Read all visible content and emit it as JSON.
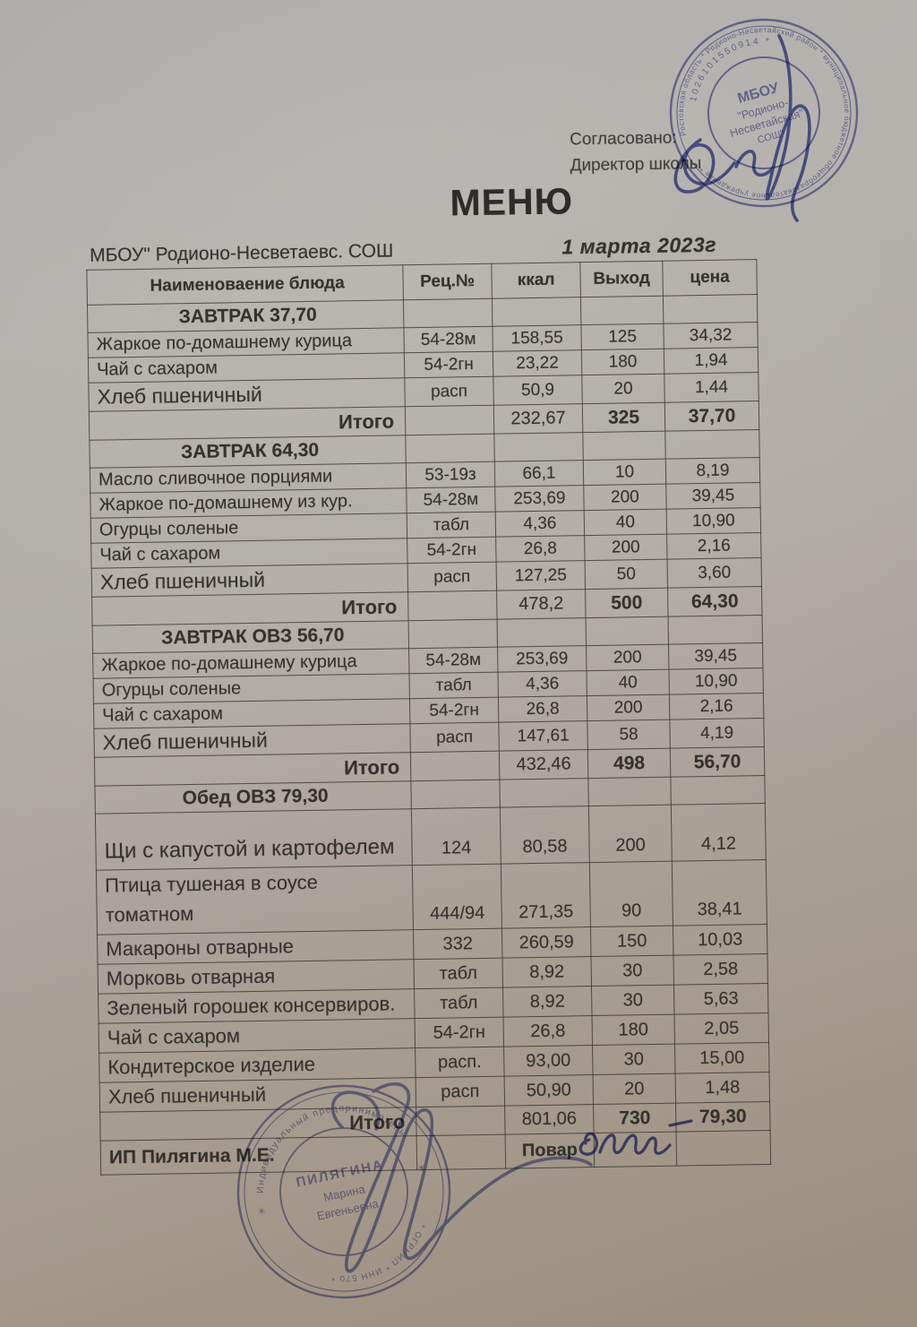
{
  "colors": {
    "text_ink": "#34312e",
    "stamp_ink": "#5a5fae",
    "signature_ink": "#4753a6",
    "paper_top": "#b3b0ac",
    "paper_bottom": "#9c8d7d"
  },
  "approval": {
    "line1": "Согласовано:",
    "line2": "Директор школы"
  },
  "title": "МЕНЮ",
  "school": "МБОУ\" Родионо-Несветаевс. СОШ",
  "date": "1 марта 2023г",
  "table": {
    "headers": [
      "Наименоваение блюда",
      "Рец.№",
      "ккал",
      "Выход",
      "цена"
    ],
    "sections": [
      {
        "title": "ЗАВТРАК 37,70",
        "rows": [
          {
            "name": "Жаркое по-домашнему курица",
            "rec": "54-28м",
            "kcal": "158,55",
            "out": "125",
            "price": "34,32"
          },
          {
            "name": "Чай с сахаром",
            "rec": "54-2гн",
            "kcal": "23,22",
            "out": "180",
            "price": "1,94"
          },
          {
            "name": "Хлеб пшеничный",
            "rec": "расп",
            "kcal": "50,9",
            "out": "20",
            "price": "1,44"
          }
        ],
        "total": {
          "label": "Итого",
          "kcal": "232,67",
          "out": "325",
          "price": "37,70"
        }
      },
      {
        "title": "ЗАВТРАК 64,30",
        "rows": [
          {
            "name": "Масло сливочное порциями",
            "rec": "53-19з",
            "kcal": "66,1",
            "out": "10",
            "price": "8,19"
          },
          {
            "name": "Жаркое по-домашнему из кур.",
            "rec": "54-28м",
            "kcal": "253,69",
            "out": "200",
            "price": "39,45"
          },
          {
            "name": "Огурцы соленые",
            "rec": "табл",
            "kcal": "4,36",
            "out": "40",
            "price": "10,90"
          },
          {
            "name": "Чай с сахаром",
            "rec": "54-2гн",
            "kcal": "26,8",
            "out": "200",
            "price": "2,16"
          },
          {
            "name": "Хлеб пшеничный",
            "rec": "расп",
            "kcal": "127,25",
            "out": "50",
            "price": "3,60"
          }
        ],
        "total": {
          "label": "Итого",
          "kcal": "478,2",
          "out": "500",
          "price": "64,30"
        }
      },
      {
        "title": "ЗАВТРАК ОВЗ 56,70",
        "rows": [
          {
            "name": "Жаркое по-домашнему курица",
            "rec": "54-28м",
            "kcal": "253,69",
            "out": "200",
            "price": "39,45"
          },
          {
            "name": "Огурцы соленые",
            "rec": "табл",
            "kcal": "4,36",
            "out": "40",
            "price": "10,90"
          },
          {
            "name": "Чай с сахаром",
            "rec": "54-2гн",
            "kcal": "26,8",
            "out": "200",
            "price": "2,16"
          },
          {
            "name": "Хлеб пшеничный",
            "rec": "расп",
            "kcal": "147,61",
            "out": "58",
            "price": "4,19"
          }
        ],
        "total": {
          "label": "Итого",
          "kcal": "432,46",
          "out": "498",
          "price": "56,70"
        }
      },
      {
        "title": "Обед ОВЗ 79,30",
        "rows": [
          {
            "name": "Щи с капустой и картофелем",
            "rec": "124",
            "kcal": "80,58",
            "out": "200",
            "price": "4,12"
          },
          {
            "name": "Птица тушеная в соусе томатном",
            "rec": "444/94",
            "kcal": "271,35",
            "out": "90",
            "price": "38,41"
          },
          {
            "name": "Макароны отварные",
            "rec": "332",
            "kcal": "260,59",
            "out": "150",
            "price": "10,03"
          },
          {
            "name": "Морковь отварная",
            "rec": "табл",
            "kcal": "8,92",
            "out": "30",
            "price": "2,58"
          },
          {
            "name": "Зеленый горошек консервиров.",
            "rec": "табл",
            "kcal": "8,92",
            "out": "30",
            "price": "5,63"
          },
          {
            "name": "Чай с сахаром",
            "rec": "54-2гн",
            "kcal": "26,8",
            "out": "180",
            "price": "2,05"
          },
          {
            "name": "Кондитерское изделие",
            "rec": "расп.",
            "kcal": "93,00",
            "out": "30",
            "price": "15,00"
          },
          {
            "name": "Хлеб пшеничный",
            "rec": "расп",
            "kcal": "50,90",
            "out": "20",
            "price": "1,48"
          }
        ],
        "total": {
          "label": "Итого",
          "kcal": "801,06",
          "out": "730",
          "price": "79,30"
        }
      }
    ],
    "footer": {
      "left": "ИП Пилягина М.Е.",
      "cook_label": "Повар"
    }
  },
  "stamps": {
    "top": {
      "center_lines": [
        "МБОУ",
        "\"Родионо-",
        "Несветайская\"",
        "СОШ\""
      ],
      "ring_digits": "1026101550914 *",
      "ring_text": "Ростовская область * Родионо-Несветайский район * муниципальное бюджетное общеобразовательное учреждение *"
    },
    "bottom": {
      "center_lines": [
        "ПИЛЯГИНА",
        "Марина",
        "Евгеньевна"
      ],
      "ring_text_top": "Индивидуальный предприниматель",
      "ring_text_bottom": "* ОГРНИП * ИНН 570 *",
      "side_mark": "✳"
    }
  }
}
